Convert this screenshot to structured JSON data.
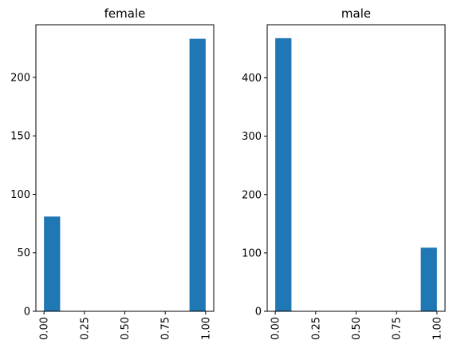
{
  "chart_data": [
    {
      "type": "bar",
      "title": "female",
      "xlabel": "",
      "ylabel": "",
      "xlim": [
        -0.05,
        1.05
      ],
      "ylim": [
        0,
        245
      ],
      "x_ticks": [
        0.0,
        0.25,
        0.5,
        0.75,
        1.0
      ],
      "x_tick_labels": [
        "0.00",
        "0.25",
        "0.50",
        "0.75",
        "1.00"
      ],
      "y_ticks": [
        0,
        50,
        100,
        150,
        200
      ],
      "y_tick_labels": [
        "0",
        "50",
        "100",
        "150",
        "200"
      ],
      "bars": [
        {
          "x0": 0.0,
          "x1": 0.1,
          "value": 81
        },
        {
          "x0": 0.9,
          "x1": 1.0,
          "value": 233
        }
      ],
      "color": "#1f77b4",
      "grid": false,
      "x_tick_rotation": 90
    },
    {
      "type": "bar",
      "title": "male",
      "xlabel": "",
      "ylabel": "",
      "xlim": [
        -0.05,
        1.05
      ],
      "ylim": [
        0,
        491
      ],
      "x_ticks": [
        0.0,
        0.25,
        0.5,
        0.75,
        1.0
      ],
      "x_tick_labels": [
        "0.00",
        "0.25",
        "0.50",
        "0.75",
        "1.00"
      ],
      "y_ticks": [
        0,
        100,
        200,
        300,
        400
      ],
      "y_tick_labels": [
        "0",
        "100",
        "200",
        "300",
        "400"
      ],
      "bars": [
        {
          "x0": 0.0,
          "x1": 0.1,
          "value": 468
        },
        {
          "x0": 0.9,
          "x1": 1.0,
          "value": 109
        }
      ],
      "color": "#1f77b4",
      "grid": false,
      "x_tick_rotation": 90
    }
  ]
}
